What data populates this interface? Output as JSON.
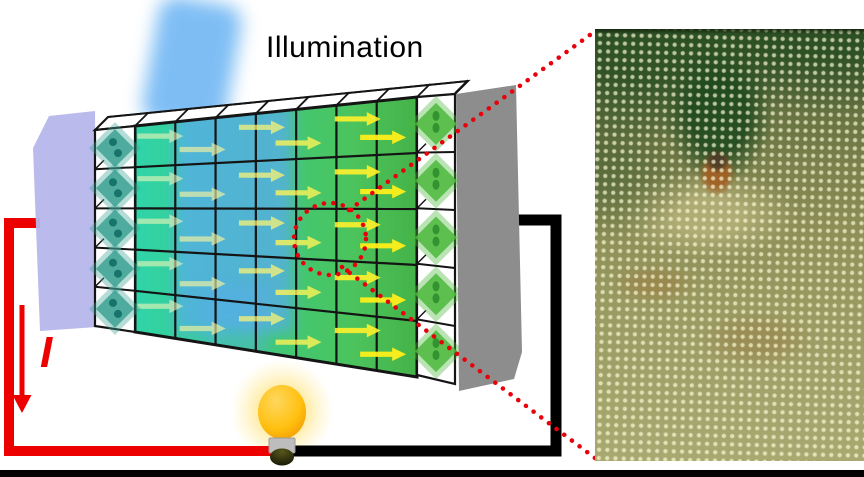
{
  "figure": {
    "labels": {
      "illumination": "Illumination",
      "current_symbol": "I"
    }
  },
  "colors": {
    "beam_blue": "#5aabf2",
    "device_teal": "#30d4a9",
    "device_mid_green": "#3fca7c",
    "device_green": "#44b348",
    "grid_line": "#141414",
    "arrow_yellow_strong": "#ffee00",
    "arrow_yellow_pale": "#fffacd",
    "electrode_left_purple": "#b6b6ec",
    "electrode_right_gray": "#8d8d8d",
    "wire_positive_red": "#ec0000",
    "wire_negative_black": "#000000",
    "annotation_red": "#e8000b",
    "bulb_body_yellow": "#ffc010",
    "bulb_glow_yellow": "#ffe06e",
    "bulb_base_gray": "#bdbdbd",
    "octahedron_teal": "#3da294",
    "octahedron_green": "#4cb93c",
    "frame_black": "#000000"
  },
  "device": {
    "grid_rows": 5,
    "grid_cols": 7,
    "arrows_per_row": 6,
    "arrow_direction": "right",
    "octahedra_per_side_column": 5
  },
  "micrograph": {
    "content": "atomic-lattice-with-defect"
  }
}
